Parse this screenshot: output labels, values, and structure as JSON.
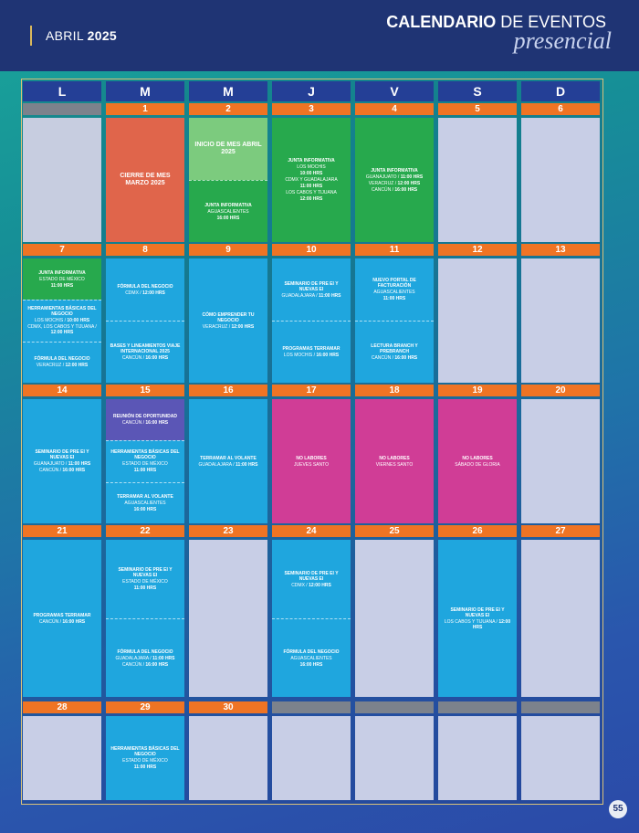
{
  "header": {
    "month": "ABRIL",
    "year": "2025",
    "title_bold": "CALENDARIO",
    "title_rest": " DE EVENTOS",
    "subtitle": "presencial"
  },
  "days_of_week": [
    "L",
    "M",
    "M",
    "J",
    "V",
    "S",
    "D"
  ],
  "page_number": "55",
  "colors": {
    "green": "#27a94d",
    "green_light": "#7ccb7e",
    "blue": "#1fa6de",
    "red": "#e0654b",
    "magenta": "#d03d96",
    "purple": "#5b56b6",
    "empty": "#c8cee6",
    "orange": "#ef7424"
  },
  "weeks": [
    {
      "days": [
        {
          "num": "",
          "events": []
        },
        {
          "num": "1",
          "bg": "red",
          "events": [
            {
              "title": "CIERRE DE MES MARZO 2025",
              "big": true,
              "lines": []
            }
          ]
        },
        {
          "num": "2",
          "bg": "green",
          "events": [
            {
              "title": "INICIO DE MES ABRIL 2025",
              "big": true,
              "bg": "green_light",
              "lines": []
            },
            {
              "title": "JUNTA INFORMATIVA",
              "lines": [
                [
                  "AGUASCALIENTES",
                  ""
                ],
                [
                  "",
                  "16:00 HRS"
                ]
              ]
            }
          ]
        },
        {
          "num": "3",
          "bg": "green",
          "events": [
            {
              "title": "JUNTA INFORMATIVA",
              "lines": [
                [
                  "LOS MOCHIS",
                  ""
                ],
                [
                  "",
                  "10:00 HRS"
                ],
                [
                  "CDMX Y GUADALAJARA",
                  ""
                ],
                [
                  "",
                  "11:00 HRS"
                ],
                [
                  "LOS CABOS Y TIJUANA",
                  ""
                ],
                [
                  "",
                  "12:00 HRS"
                ]
              ]
            }
          ]
        },
        {
          "num": "4",
          "bg": "green",
          "events": [
            {
              "title": "JUNTA INFORMATIVA",
              "lines": [
                [
                  "GUANAJUATO / ",
                  "11:00 HRS"
                ],
                [
                  "VERACRUZ / ",
                  "12:00 HRS"
                ],
                [
                  "CANCÚN / ",
                  "16:00 HRS"
                ]
              ]
            }
          ]
        },
        {
          "num": "5",
          "events": []
        },
        {
          "num": "6",
          "events": []
        }
      ]
    },
    {
      "days": [
        {
          "num": "7",
          "bg": "blue",
          "events": [
            {
              "title": "JUNTA INFORMATIVA",
              "bg": "green",
              "lines": [
                [
                  "ESTADO DE MÉXICO",
                  ""
                ],
                [
                  "",
                  "11:00 HRS"
                ]
              ]
            },
            {
              "title": "HERRAMIENTAS BÁSICAS DEL NEGOCIO",
              "lines": [
                [
                  "LOS MOCHIS / ",
                  "10:00 HRS"
                ],
                [
                  "CDMX, LOS CABOS Y TIJUANA / ",
                  "12:00 HRS"
                ]
              ]
            },
            {
              "title": "FÓRMULA DEL NEGOCIO",
              "lines": [
                [
                  "VERACRUZ / ",
                  "12:00 HRS"
                ]
              ]
            }
          ]
        },
        {
          "num": "8",
          "bg": "blue",
          "events": [
            {
              "title": "FÓRMULA DEL NEGOCIO",
              "lines": [
                [
                  "CDMX / ",
                  "12:00 HRS"
                ]
              ]
            },
            {
              "title": "BASES Y LINEAMIENTOS VIAJE INTERNACIONAL 2025",
              "lines": [
                [
                  "CANCÚN / ",
                  "16:00 HRS"
                ]
              ]
            }
          ]
        },
        {
          "num": "9",
          "bg": "blue",
          "events": [
            {
              "title": "CÓMO EMPRENDER TU NEGOCIO",
              "lines": [
                [
                  "VERACRUZ / ",
                  "12:00 HRS"
                ]
              ]
            }
          ]
        },
        {
          "num": "10",
          "bg": "blue",
          "events": [
            {
              "title": "SEMINARIO DE PRE EI Y NUEVAS EI",
              "lines": [
                [
                  "GUADALAJARA / ",
                  "11:00 HRS"
                ]
              ]
            },
            {
              "title": "PROGRAMAS TERRAMAR",
              "lines": [
                [
                  "LOS MOCHIS / ",
                  "16:00 HRS"
                ]
              ]
            }
          ]
        },
        {
          "num": "11",
          "bg": "blue",
          "events": [
            {
              "title": "NUEVO PORTAL DE FACTURACIÓN",
              "lines": [
                [
                  "AGUASCALIENTES",
                  ""
                ],
                [
                  "",
                  "11:00 HRS"
                ]
              ]
            },
            {
              "title": "LECTURA BRANCH Y PREBRANCH",
              "lines": [
                [
                  "CANCÚN / ",
                  "16:00 HRS"
                ]
              ]
            }
          ]
        },
        {
          "num": "12",
          "events": []
        },
        {
          "num": "13",
          "events": []
        }
      ]
    },
    {
      "days": [
        {
          "num": "14",
          "bg": "blue",
          "events": [
            {
              "title": "SEMINARIO DE PRE EI Y NUEVAS EI",
              "lines": [
                [
                  "GUANAJUATO / ",
                  "11:00 HRS"
                ],
                [
                  "CANCÚN / ",
                  "16:00 HRS"
                ]
              ]
            }
          ]
        },
        {
          "num": "15",
          "bg": "blue",
          "events": [
            {
              "title": "REUNIÓN DE OPORTUNIDAD",
              "bg": "purple",
              "lines": [
                [
                  "CANCÚN / ",
                  "16:00 HRS"
                ]
              ]
            },
            {
              "title": "HERRAMIENTAS BÁSICAS DEL NEGOCIO",
              "lines": [
                [
                  "ESTADO DE MÉXICO",
                  ""
                ],
                [
                  "",
                  "11:00 HRS"
                ]
              ]
            },
            {
              "title": "TERRAMAR AL VOLANTE",
              "lines": [
                [
                  "AGUASCALIENTES",
                  ""
                ],
                [
                  "",
                  "16:00 HRS"
                ]
              ]
            }
          ]
        },
        {
          "num": "16",
          "bg": "blue",
          "events": [
            {
              "title": "TERRAMAR AL VOLANTE",
              "lines": [
                [
                  "GUADALAJARA / ",
                  "11:00 HRS"
                ]
              ]
            }
          ]
        },
        {
          "num": "17",
          "bg": "magenta",
          "events": [
            {
              "title": "NO LABORES",
              "lines": [
                [
                  "JUEVES SANTO",
                  ""
                ]
              ]
            }
          ]
        },
        {
          "num": "18",
          "bg": "magenta",
          "events": [
            {
              "title": "NO LABORES",
              "lines": [
                [
                  "VIERNES SANTO",
                  ""
                ]
              ]
            }
          ]
        },
        {
          "num": "19",
          "bg": "magenta",
          "events": [
            {
              "title": "NO LABORES",
              "lines": [
                [
                  "SÁBADO DE GLORIA",
                  ""
                ]
              ]
            }
          ]
        },
        {
          "num": "20",
          "events": []
        }
      ]
    },
    {
      "days": [
        {
          "num": "21",
          "bg": "blue",
          "events": [
            {
              "title": "PROGRAMAS TERRAMAR",
              "lines": [
                [
                  "CANCÚN / ",
                  "16:00 HRS"
                ]
              ]
            }
          ]
        },
        {
          "num": "22",
          "bg": "blue",
          "events": [
            {
              "title": "SEMINARIO DE PRE EI Y NUEVAS EI",
              "lines": [
                [
                  "ESTADO DE MÉXICO",
                  ""
                ],
                [
                  "",
                  "11:00 HRS"
                ]
              ]
            },
            {
              "title": "FÓRMULA DEL NEGOCIO",
              "lines": [
                [
                  "GUADALAJARA / ",
                  "11:00 HRS"
                ],
                [
                  "CANCÚN / ",
                  "16:00 HRS"
                ]
              ]
            }
          ]
        },
        {
          "num": "23",
          "events": []
        },
        {
          "num": "24",
          "bg": "blue",
          "events": [
            {
              "title": "SEMINARIO DE PRE EI Y NUEVAS EI",
              "lines": [
                [
                  "CDMX / ",
                  "12:00 HRS"
                ]
              ]
            },
            {
              "title": "FÓRMULA DEL NEGOCIO",
              "lines": [
                [
                  "AGUASCALIENTES",
                  ""
                ],
                [
                  "",
                  "16:00 HRS"
                ]
              ]
            }
          ]
        },
        {
          "num": "25",
          "events": []
        },
        {
          "num": "26",
          "bg": "blue",
          "events": [
            {
              "title": "SEMINARIO DE PRE EI Y NUEVAS EI",
              "lines": [
                [
                  "LOS CABOS Y TIJUANA / ",
                  "12:00 HRS"
                ]
              ]
            }
          ]
        },
        {
          "num": "27",
          "events": []
        }
      ]
    },
    {
      "days": [
        {
          "num": "28",
          "events": []
        },
        {
          "num": "29",
          "bg": "blue",
          "events": [
            {
              "title": "HERRAMIENTAS BÁSICAS DEL NEGOCIO",
              "lines": [
                [
                  "ESTADO DE MÉXICO",
                  ""
                ],
                [
                  "",
                  "11:00 HRS"
                ]
              ]
            }
          ]
        },
        {
          "num": "30",
          "events": []
        },
        {
          "num": "",
          "events": []
        },
        {
          "num": "",
          "events": []
        },
        {
          "num": "",
          "events": []
        },
        {
          "num": "",
          "events": []
        }
      ]
    }
  ]
}
